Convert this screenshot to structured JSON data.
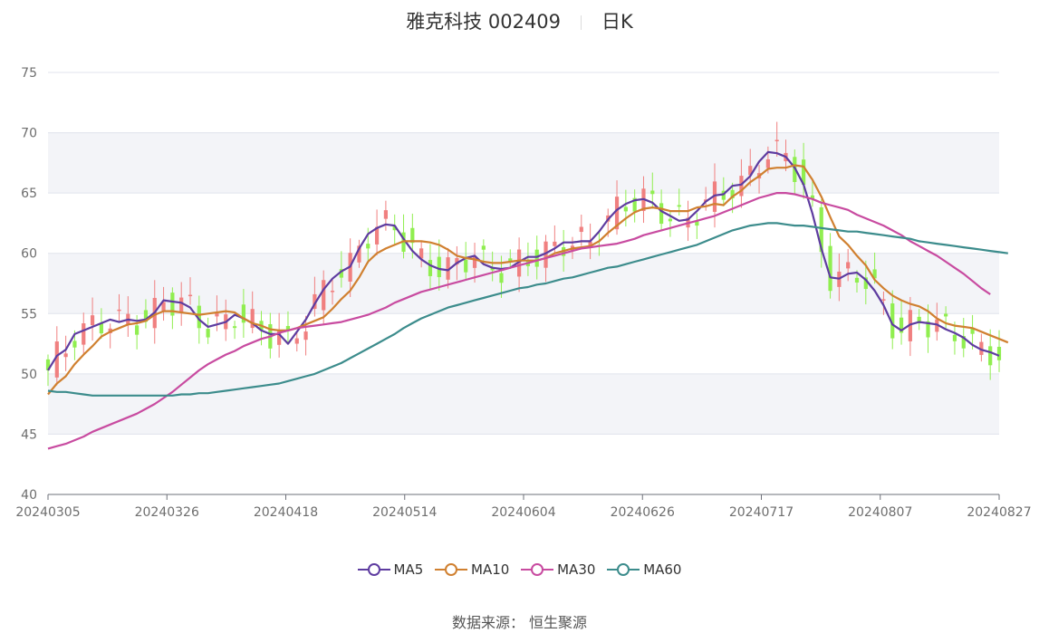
{
  "header": {
    "stock": "雅克科技 002409",
    "period": "日K"
  },
  "source_label": "数据来源：",
  "source_name": "恒生聚源",
  "chart_data": {
    "type": "candlestick",
    "ylim": [
      40,
      75
    ],
    "y_ticks": [
      40,
      45,
      50,
      55,
      60,
      65,
      70,
      75
    ],
    "x_tick_labels": [
      "20240305",
      "20240326",
      "20240418",
      "20240514",
      "20240604",
      "20240626",
      "20240717",
      "20240807",
      "20240827"
    ],
    "up_color": "#f08080",
    "down_color": "#90ee50",
    "series": [
      {
        "name": "MA5",
        "color": "#5e3ca0",
        "values": [
          50.3,
          51.5,
          52.0,
          53.3,
          53.6,
          53.9,
          54.2,
          54.5,
          54.3,
          54.5,
          54.4,
          54.5,
          55.1,
          56.1,
          56.0,
          55.9,
          55.5,
          54.5,
          53.9,
          54.1,
          54.3,
          54.9,
          54.6,
          54.2,
          53.6,
          53.3,
          53.3,
          52.5,
          53.5,
          54.5,
          55.8,
          57.0,
          57.9,
          58.5,
          58.9,
          60.4,
          61.6,
          62.1,
          62.4,
          62.3,
          61.2,
          60.2,
          59.5,
          59.0,
          58.7,
          58.6,
          59.2,
          59.6,
          59.8,
          59.1,
          58.8,
          58.7,
          58.8,
          59.3,
          59.7,
          59.7,
          60.0,
          60.4,
          60.9,
          60.9,
          61.0,
          61.0,
          61.8,
          62.8,
          63.6,
          64.1,
          64.4,
          64.5,
          64.2,
          63.5,
          63.1,
          62.7,
          62.8,
          63.5,
          64.3,
          64.8,
          64.9,
          65.6,
          65.7,
          66.4,
          67.6,
          68.4,
          68.3,
          68.0,
          67.1,
          65.7,
          63.3,
          60.4,
          58.0,
          57.9,
          58.3,
          58.4,
          57.8,
          56.9,
          55.7,
          54.1,
          53.6,
          54.1,
          54.3,
          54.2,
          54.1,
          53.7,
          53.4,
          53.0,
          52.4,
          52.0,
          51.8,
          51.5
        ]
      },
      {
        "name": "MA10",
        "color": "#d08030",
        "values": [
          48.3,
          49.2,
          49.8,
          50.8,
          51.6,
          52.3,
          53.1,
          53.5,
          53.8,
          54.1,
          54.2,
          54.4,
          54.9,
          55.2,
          55.2,
          55.1,
          55.0,
          54.9,
          55.0,
          55.1,
          55.2,
          55.1,
          54.6,
          54.2,
          54.0,
          53.7,
          53.6,
          53.6,
          53.8,
          54.1,
          54.4,
          54.7,
          55.4,
          56.2,
          56.9,
          58.0,
          59.3,
          60.0,
          60.4,
          60.7,
          61.0,
          61.0,
          61.0,
          60.9,
          60.7,
          60.3,
          59.8,
          59.6,
          59.5,
          59.3,
          59.2,
          59.2,
          59.3,
          59.4,
          59.4,
          59.4,
          59.6,
          60.0,
          60.2,
          60.4,
          60.5,
          60.6,
          61.0,
          61.7,
          62.3,
          62.9,
          63.4,
          63.7,
          63.8,
          63.7,
          63.5,
          63.5,
          63.5,
          63.8,
          63.9,
          64.1,
          64.0,
          64.7,
          65.2,
          65.9,
          66.4,
          67.0,
          67.1,
          67.1,
          67.3,
          67.2,
          66.1,
          64.7,
          63.0,
          61.4,
          60.7,
          59.8,
          59.0,
          57.8,
          57.1,
          56.5,
          56.1,
          55.8,
          55.6,
          55.2,
          54.6,
          54.2,
          54.0,
          53.9,
          53.8,
          53.5,
          53.2,
          52.9,
          52.6
        ]
      },
      {
        "name": "MA30",
        "color": "#c84ba0",
        "values": [
          43.8,
          44.0,
          44.2,
          44.5,
          44.8,
          45.2,
          45.5,
          45.8,
          46.1,
          46.4,
          46.7,
          47.1,
          47.5,
          48.0,
          48.5,
          49.1,
          49.7,
          50.3,
          50.8,
          51.2,
          51.6,
          51.9,
          52.3,
          52.6,
          52.9,
          53.1,
          53.4,
          53.6,
          53.8,
          53.9,
          54.0,
          54.1,
          54.2,
          54.3,
          54.5,
          54.7,
          54.9,
          55.2,
          55.5,
          55.9,
          56.2,
          56.5,
          56.8,
          57.0,
          57.2,
          57.4,
          57.6,
          57.8,
          58.0,
          58.2,
          58.4,
          58.6,
          58.8,
          59.0,
          59.2,
          59.4,
          59.6,
          59.8,
          60.0,
          60.2,
          60.4,
          60.5,
          60.6,
          60.7,
          60.8,
          61.0,
          61.2,
          61.5,
          61.7,
          61.9,
          62.1,
          62.3,
          62.5,
          62.7,
          62.9,
          63.1,
          63.4,
          63.7,
          64.0,
          64.3,
          64.6,
          64.8,
          65.0,
          65.0,
          64.9,
          64.7,
          64.5,
          64.2,
          64.0,
          63.8,
          63.6,
          63.2,
          62.9,
          62.6,
          62.3,
          61.9,
          61.5,
          61.0,
          60.6,
          60.2,
          59.8,
          59.3,
          58.8,
          58.3,
          57.7,
          57.1,
          56.6
        ]
      },
      {
        "name": "MA60",
        "color": "#3c8c8c",
        "values": [
          48.6,
          48.5,
          48.5,
          48.4,
          48.3,
          48.2,
          48.2,
          48.2,
          48.2,
          48.2,
          48.2,
          48.2,
          48.2,
          48.2,
          48.2,
          48.3,
          48.3,
          48.4,
          48.4,
          48.5,
          48.6,
          48.7,
          48.8,
          48.9,
          49.0,
          49.1,
          49.2,
          49.4,
          49.6,
          49.8,
          50.0,
          50.3,
          50.6,
          50.9,
          51.3,
          51.7,
          52.1,
          52.5,
          52.9,
          53.3,
          53.8,
          54.2,
          54.6,
          54.9,
          55.2,
          55.5,
          55.7,
          55.9,
          56.1,
          56.3,
          56.5,
          56.7,
          56.9,
          57.1,
          57.2,
          57.4,
          57.5,
          57.7,
          57.9,
          58.0,
          58.2,
          58.4,
          58.6,
          58.8,
          58.9,
          59.1,
          59.3,
          59.5,
          59.7,
          59.9,
          60.1,
          60.3,
          60.5,
          60.7,
          61.0,
          61.3,
          61.6,
          61.9,
          62.1,
          62.3,
          62.4,
          62.5,
          62.5,
          62.4,
          62.3,
          62.3,
          62.2,
          62.1,
          62.0,
          61.9,
          61.8,
          61.8,
          61.7,
          61.6,
          61.5,
          61.4,
          61.3,
          61.2,
          61.0,
          60.9,
          60.8,
          60.7,
          60.6,
          60.5,
          60.4,
          60.3,
          60.2,
          60.1,
          60.0
        ]
      }
    ]
  },
  "legend": [
    {
      "label": "MA5",
      "color": "#5e3ca0"
    },
    {
      "label": "MA10",
      "color": "#d08030"
    },
    {
      "label": "MA30",
      "color": "#c84ba0"
    },
    {
      "label": "MA60",
      "color": "#3c8c8c"
    }
  ]
}
